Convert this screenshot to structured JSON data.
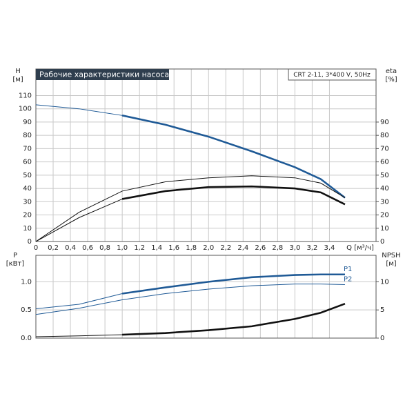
{
  "chart_data": [
    {
      "type": "line",
      "title": "Рабочие характеристики насоса",
      "subtitle": "CRT 2-11, 3*400 V, 50Hz",
      "xlabel": "Q [м³/ч]",
      "ylabel": [
        "H",
        "[м]"
      ],
      "y2label": [
        "eta",
        "[%]"
      ],
      "x": [
        0,
        0.5,
        1,
        1.5,
        2,
        2.5,
        3,
        3.3,
        3.58
      ],
      "xlim": [
        0,
        3.94
      ],
      "xticks": [
        0,
        {
          "value": 0.2,
          "label": "0,2"
        },
        {
          "value": 0.4,
          "label": "0,4"
        },
        {
          "value": 0.6,
          "label": "0,6"
        },
        {
          "value": 0.8,
          "label": "0,8"
        },
        {
          "value": 1,
          "label": "1,0"
        },
        {
          "value": 1.2,
          "label": "1,2"
        },
        {
          "value": 1.4,
          "label": "1,4"
        },
        {
          "value": 1.6,
          "label": "1,6"
        },
        {
          "value": 1.8,
          "label": "1,8"
        },
        {
          "value": 2,
          "label": "2,0"
        },
        {
          "value": 2.2,
          "label": "2,2"
        },
        {
          "value": 2.4,
          "label": "2,4"
        },
        {
          "value": 2.6,
          "label": "2,6"
        },
        {
          "value": 2.8,
          "label": "2,8"
        },
        {
          "value": 3,
          "label": "3,0"
        },
        {
          "value": 3.2,
          "label": "3,2"
        },
        {
          "value": 3.4,
          "label": "3,4"
        }
      ],
      "ylim": [
        0,
        130
      ],
      "yticks": [
        0,
        10,
        20,
        30,
        40,
        50,
        60,
        70,
        80,
        90,
        100,
        110
      ],
      "y2lim": [
        0,
        130
      ],
      "y2ticks": [
        0,
        10,
        20,
        30,
        40,
        50,
        60,
        70,
        80,
        90
      ],
      "duty_start": 1,
      "series": [
        {
          "color": "#1f5a96",
          "thick": true,
          "values": [
            103,
            100,
            95,
            88,
            79,
            68,
            56,
            47,
            33
          ]
        },
        {
          "color": "#111111",
          "thick": false,
          "axis": "y2",
          "values": [
            0,
            22,
            38,
            45,
            48,
            49.5,
            48,
            44,
            33
          ]
        },
        {
          "color": "#111111",
          "thick": true,
          "axis": "y2",
          "values": [
            0,
            18,
            32,
            38,
            41,
            41.5,
            40,
            37,
            28
          ]
        }
      ]
    },
    {
      "type": "line",
      "ylabel": [
        "P",
        "[кВт]"
      ],
      "y2label": [
        "NPSH",
        "[м]"
      ],
      "x": [
        0,
        0.5,
        1,
        1.5,
        2,
        2.5,
        3,
        3.3,
        3.58
      ],
      "xlim": [
        0,
        3.94
      ],
      "ylim": [
        0,
        1.47
      ],
      "yticks": [
        {
          "value": 0,
          "label": "0.0"
        },
        {
          "value": 0.5,
          "label": "0.5"
        },
        {
          "value": 1,
          "label": "1.0"
        }
      ],
      "y2lim": [
        0,
        14.7
      ],
      "y2ticks": [
        0,
        5,
        10
      ],
      "duty_start": 1,
      "series": [
        {
          "name": "P1",
          "color": "#1f5a96",
          "thick": true,
          "values": [
            0.52,
            0.6,
            0.79,
            0.9,
            1.0,
            1.08,
            1.12,
            1.13,
            1.13
          ]
        },
        {
          "name": "P2",
          "color": "#1f5a96",
          "thick": false,
          "values": [
            0.42,
            0.53,
            0.68,
            0.79,
            0.87,
            0.93,
            0.96,
            0.96,
            0.95
          ]
        },
        {
          "color": "#111111",
          "thick": true,
          "axis": "y2",
          "values": [
            0.25,
            0.4,
            0.6,
            0.9,
            1.4,
            2.1,
            3.4,
            4.5,
            6.1
          ]
        }
      ]
    }
  ]
}
